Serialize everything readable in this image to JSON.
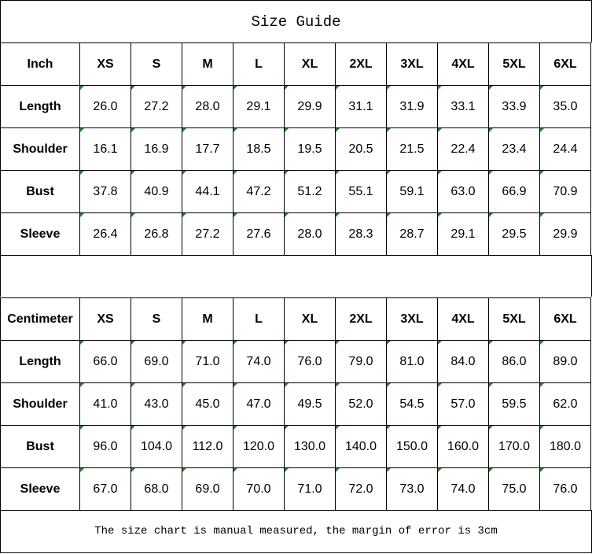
{
  "title": "Size Guide",
  "sizes": [
    "XS",
    "S",
    "M",
    "L",
    "XL",
    "2XL",
    "3XL",
    "4XL",
    "5XL",
    "6XL"
  ],
  "accent_corner_color": "#1a8a1a",
  "tables": [
    {
      "unit": "Inch",
      "rows": [
        {
          "label": "Length",
          "values": [
            "26.0",
            "27.2",
            "28.0",
            "29.1",
            "29.9",
            "31.1",
            "31.9",
            "33.1",
            "33.9",
            "35.0"
          ]
        },
        {
          "label": "Shoulder",
          "values": [
            "16.1",
            "16.9",
            "17.7",
            "18.5",
            "19.5",
            "20.5",
            "21.5",
            "22.4",
            "23.4",
            "24.4"
          ]
        },
        {
          "label": "Bust",
          "values": [
            "37.8",
            "40.9",
            "44.1",
            "47.2",
            "51.2",
            "55.1",
            "59.1",
            "63.0",
            "66.9",
            "70.9"
          ]
        },
        {
          "label": "Sleeve",
          "values": [
            "26.4",
            "26.8",
            "27.2",
            "27.6",
            "28.0",
            "28.3",
            "28.7",
            "29.1",
            "29.5",
            "29.9"
          ]
        }
      ]
    },
    {
      "unit": "Centimeter",
      "rows": [
        {
          "label": "Length",
          "values": [
            "66.0",
            "69.0",
            "71.0",
            "74.0",
            "76.0",
            "79.0",
            "81.0",
            "84.0",
            "86.0",
            "89.0"
          ]
        },
        {
          "label": "Shoulder",
          "values": [
            "41.0",
            "43.0",
            "45.0",
            "47.0",
            "49.5",
            "52.0",
            "54.5",
            "57.0",
            "59.5",
            "62.0"
          ]
        },
        {
          "label": "Bust",
          "values": [
            "96.0",
            "104.0",
            "112.0",
            "120.0",
            "130.0",
            "140.0",
            "150.0",
            "160.0",
            "170.0",
            "180.0"
          ]
        },
        {
          "label": "Sleeve",
          "values": [
            "67.0",
            "68.0",
            "69.0",
            "70.0",
            "71.0",
            "72.0",
            "73.0",
            "74.0",
            "75.0",
            "76.0"
          ]
        }
      ]
    }
  ],
  "footer": "The size chart is manual measured, the margin of error is 3cm"
}
